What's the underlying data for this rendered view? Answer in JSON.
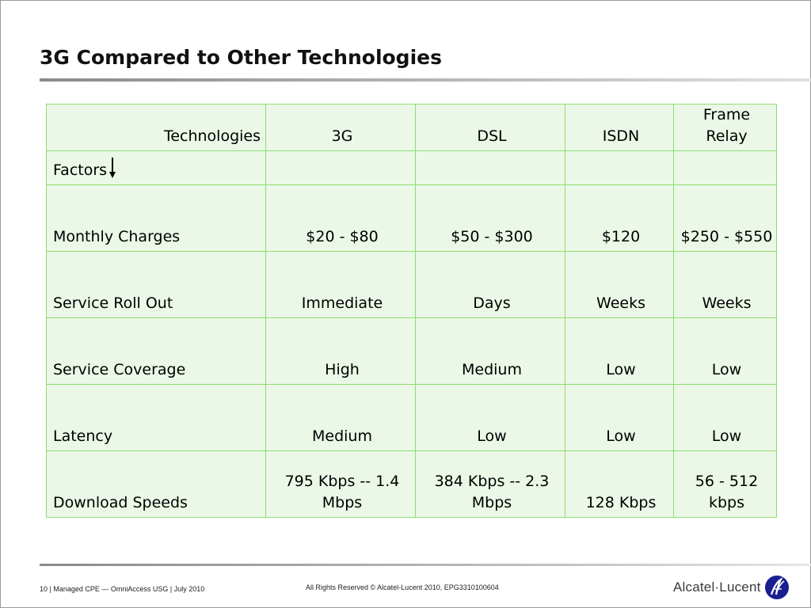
{
  "slide": {
    "title": "3G Compared to Other Technologies"
  },
  "table": {
    "tech_header": "Technologies",
    "factors_header": "Factors",
    "technologies": [
      "3G",
      "DSL",
      "ISDN",
      "Frame Relay"
    ],
    "rows": [
      {
        "factor": "Monthly Charges",
        "values": [
          "$20 - $80",
          "$50 - $300",
          "$120",
          "$250 - $550"
        ]
      },
      {
        "factor": "Service Roll Out",
        "values": [
          "Immediate",
          "Days",
          "Weeks",
          "Weeks"
        ]
      },
      {
        "factor": "Service Coverage",
        "values": [
          "High",
          "Medium",
          "Low",
          "Low"
        ]
      },
      {
        "factor": "Latency",
        "values": [
          "Medium",
          "Low",
          "Low",
          "Low"
        ]
      },
      {
        "factor": "Download Speeds",
        "values": [
          "795 Kbps -- 1.4 Mbps",
          "384 Kbps -- 2.3 Mbps",
          "128 Kbps",
          "56 - 512 kbps"
        ]
      }
    ]
  },
  "footer": {
    "left": "10 | Managed CPE — OmniAccess USG | July 2010",
    "center": "All Rights Reserved © Alcatel-Lucent 2010, EPG3310100604",
    "logo_text": "Alcatel·Lucent"
  },
  "colors": {
    "cell_background": "#ebf8e7",
    "cell_border": "#8fdc6f",
    "logo_blue": "#1a1f8f"
  }
}
